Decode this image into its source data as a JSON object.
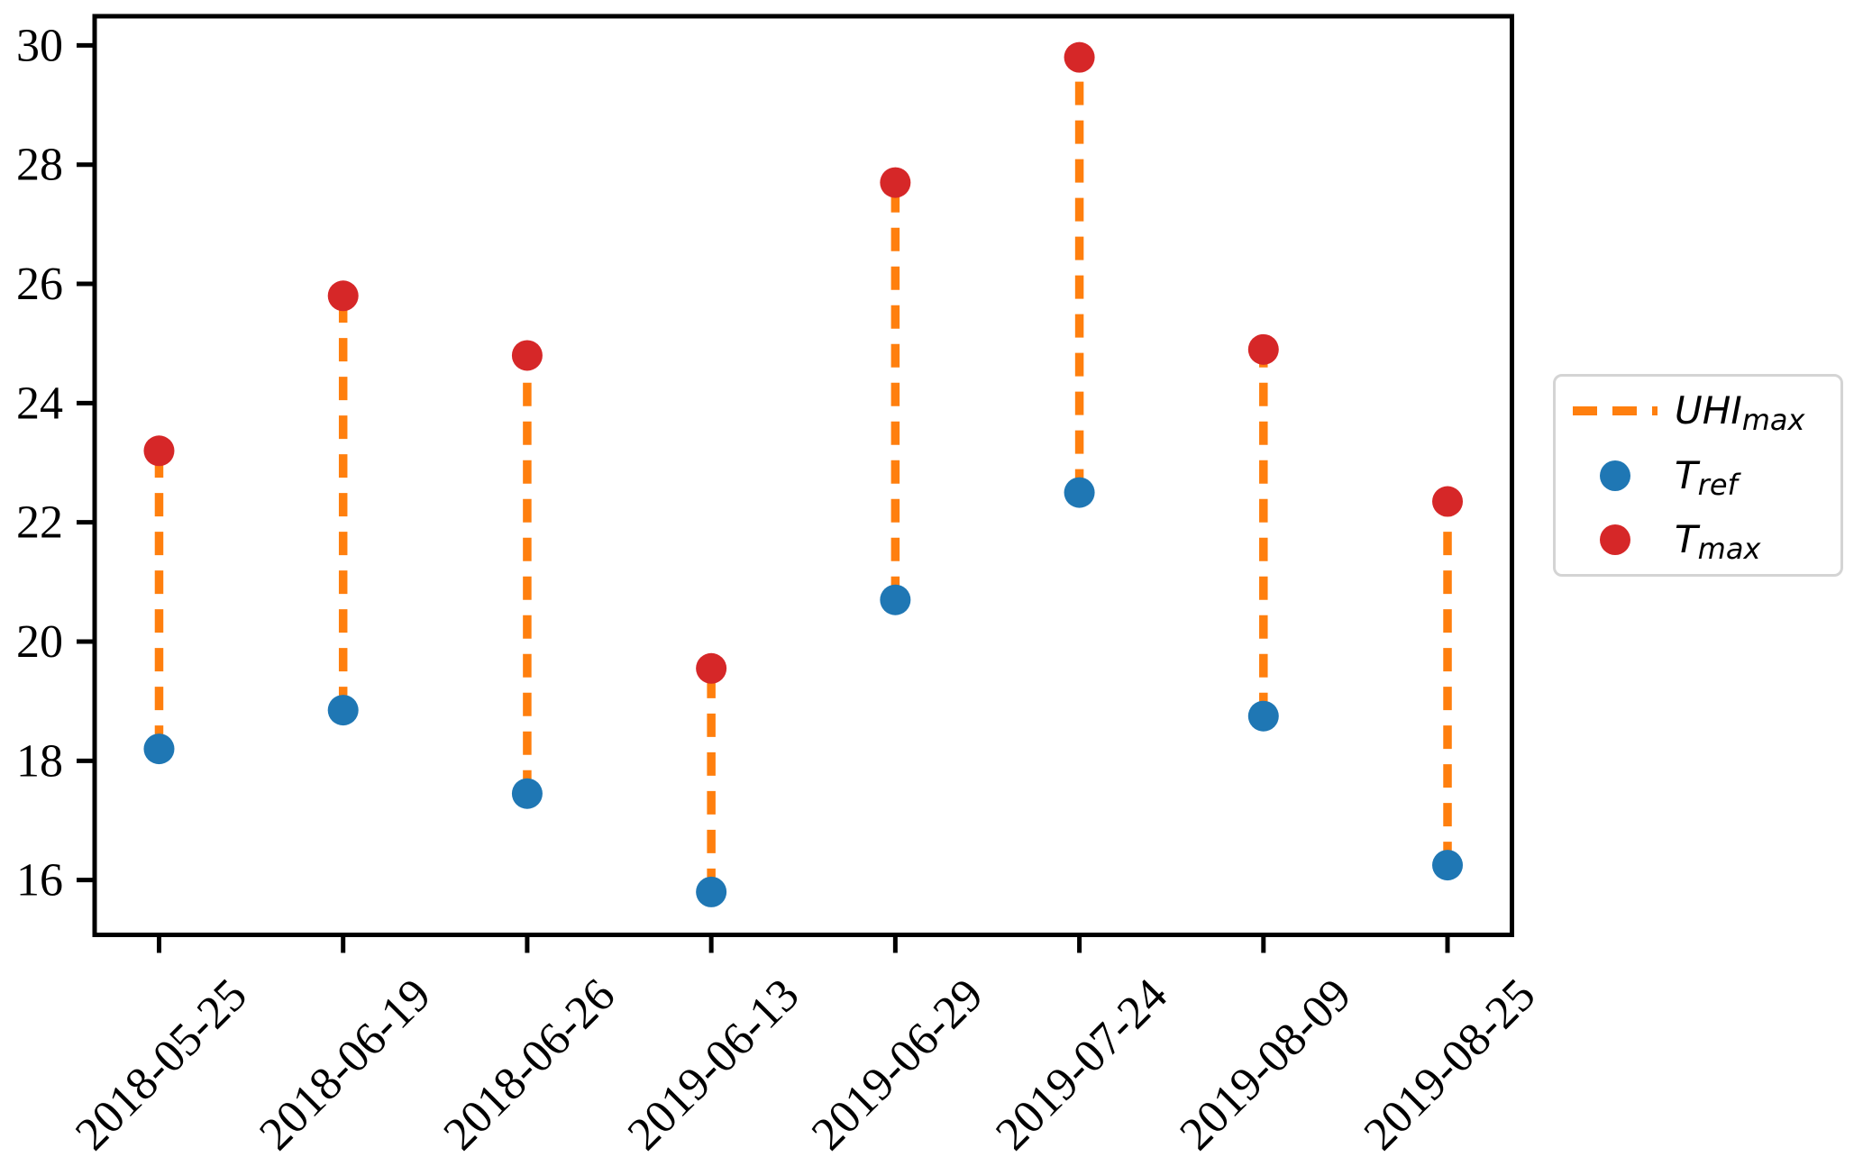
{
  "chart_data": {
    "type": "scatter",
    "title": "",
    "xlabel": "",
    "ylabel": "",
    "grid": false,
    "categories": [
      "2018-05-25",
      "2018-06-19",
      "2018-06-26",
      "2019-06-13",
      "2019-06-29",
      "2019-07-24",
      "2019-08-09",
      "2019-08-25"
    ],
    "series": [
      {
        "name": "T_ref",
        "marker": "circle",
        "color": "#1f77b4",
        "values": [
          18.2,
          18.85,
          17.45,
          15.8,
          20.7,
          22.5,
          18.75,
          16.25
        ]
      },
      {
        "name": "T_max",
        "marker": "circle",
        "color": "#d62728",
        "values": [
          23.2,
          25.8,
          24.8,
          19.55,
          27.7,
          29.8,
          24.9,
          22.35
        ]
      }
    ],
    "connectors": {
      "name": "UHI_max",
      "style": "dashed",
      "color": "#ff7f0e"
    },
    "yticks": [
      16,
      18,
      20,
      22,
      24,
      26,
      28,
      30
    ],
    "ylim": [
      15.08,
      30.49
    ],
    "xlim": [
      -0.35,
      7.35
    ],
    "axis_color": "#000000",
    "legend": {
      "position": "right",
      "entries": [
        {
          "sample": "dashed-line",
          "color": "#ff7f0e",
          "label_main": "UHI",
          "label_sub": "max"
        },
        {
          "sample": "dot",
          "color": "#1f77b4",
          "label_main": "T",
          "label_sub": "ref"
        },
        {
          "sample": "dot",
          "color": "#d62728",
          "label_main": "T",
          "label_sub": "max"
        }
      ]
    }
  }
}
